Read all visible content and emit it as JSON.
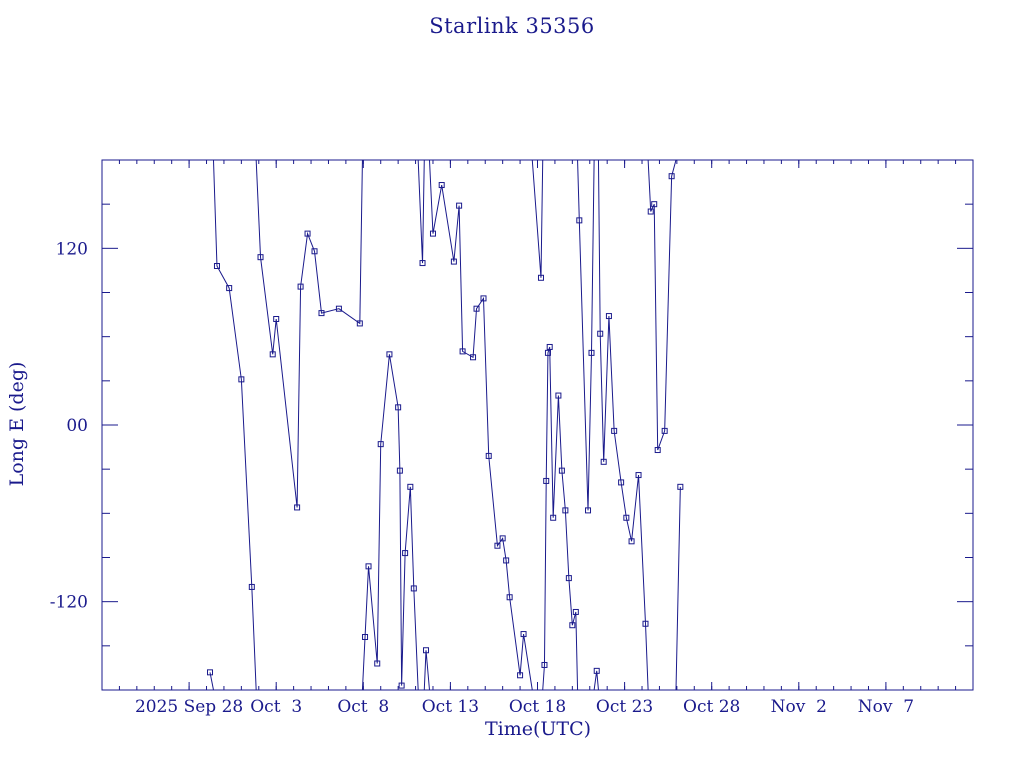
{
  "chart_data": {
    "type": "line",
    "title": "Starlink 35356",
    "xlabel": "Time(UTC)",
    "ylabel": "Long E (deg)",
    "color": "#1a1a8c",
    "x_unit": "day of month (Sep 2025 continued into Oct/Nov)",
    "x_ticks": [
      {
        "date": "2025 Sep 28",
        "label": "2025 Sep 28"
      },
      {
        "date": "Oct 3",
        "label": "Oct  3"
      },
      {
        "date": "Oct 8",
        "label": "Oct  8"
      },
      {
        "date": "Oct 13",
        "label": "Oct 13"
      },
      {
        "date": "Oct 18",
        "label": "Oct 18"
      },
      {
        "date": "Oct 23",
        "label": "Oct 23"
      },
      {
        "date": "Oct 28",
        "label": "Oct 28"
      },
      {
        "date": "Nov 2",
        "label": "Nov  2"
      },
      {
        "date": "Nov 7",
        "label": "Nov  7"
      }
    ],
    "y_ticks": [
      "-120",
      "00",
      "120"
    ],
    "ylim": [
      -180,
      180
    ],
    "xlim_dates": [
      "2025 Sep 23",
      "2025 Nov 12"
    ],
    "grid": false,
    "series": [
      {
        "points": [
          [
            "Sep 29.2",
            -168
          ],
          [
            "Sep 29.6",
            108
          ],
          [
            "Sep 30.3",
            93
          ],
          [
            "Oct 1.0",
            31
          ],
          [
            "Oct 1.6",
            -110
          ],
          [
            "Oct 2.1",
            114
          ],
          [
            "Oct 2.8",
            48
          ],
          [
            "Oct 3.0",
            72
          ],
          [
            "Oct 4.2",
            -56
          ],
          [
            "Oct 4.4",
            94
          ],
          [
            "Oct 4.8",
            130
          ],
          [
            "Oct 5.2",
            118
          ],
          [
            "Oct 5.6",
            76
          ],
          [
            "Oct 6.6",
            79
          ],
          [
            "Oct 7.8",
            69
          ],
          [
            "Oct 8.1",
            -144
          ],
          [
            "Oct 8.3",
            -96
          ],
          [
            "Oct 8.8",
            -162
          ],
          [
            "Oct 9.0",
            -13
          ],
          [
            "Oct 9.5",
            48
          ],
          [
            "Oct 10.0",
            12
          ],
          [
            "Oct 10.1",
            -31
          ],
          [
            "Oct 10.2",
            -177
          ],
          [
            "Oct 10.4",
            -87
          ],
          [
            "Oct 10.7",
            -42
          ],
          [
            "Oct 10.9",
            -111
          ],
          [
            "Oct 11.4",
            110
          ],
          [
            "Oct 11.6",
            -153
          ],
          [
            "Oct 12.0",
            130
          ],
          [
            "Oct 12.5",
            163
          ],
          [
            "Oct 13.2",
            111
          ],
          [
            "Oct 13.5",
            149
          ],
          [
            "Oct 13.7",
            50
          ],
          [
            "Oct 14.3",
            46
          ],
          [
            "Oct 14.5",
            79
          ],
          [
            "Oct 14.9",
            86
          ],
          [
            "Oct 15.2",
            -21
          ],
          [
            "Oct 15.7",
            -82
          ],
          [
            "Oct 16.0",
            -77
          ],
          [
            "Oct 16.2",
            -92
          ],
          [
            "Oct 16.4",
            -117
          ],
          [
            "Oct 17.0",
            -170
          ],
          [
            "Oct 17.2",
            -142
          ],
          [
            "Oct 18.2",
            100
          ],
          [
            "Oct 18.4",
            -163
          ],
          [
            "Oct 18.5",
            -38
          ],
          [
            "Oct 18.6",
            49
          ],
          [
            "Oct 18.7",
            53
          ],
          [
            "Oct 18.9",
            -63
          ],
          [
            "Oct 19.2",
            20
          ],
          [
            "Oct 19.4",
            -31
          ],
          [
            "Oct 19.6",
            -58
          ],
          [
            "Oct 19.8",
            -104
          ],
          [
            "Oct 20.0",
            -136
          ],
          [
            "Oct 20.2",
            -127
          ],
          [
            "Oct 20.4",
            139
          ],
          [
            "Oct 20.9",
            -58
          ],
          [
            "Oct 21.1",
            49
          ],
          [
            "Oct 21.4",
            -167
          ],
          [
            "Oct 21.6",
            62
          ],
          [
            "Oct 21.8",
            -25
          ],
          [
            "Oct 22.1",
            74
          ],
          [
            "Oct 22.4",
            -4
          ],
          [
            "Oct 22.8",
            -39
          ],
          [
            "Oct 23.1",
            -63
          ],
          [
            "Oct 23.4",
            -79
          ],
          [
            "Oct 23.8",
            -34
          ],
          [
            "Oct 24.2",
            -135
          ],
          [
            "Oct 24.5",
            145
          ],
          [
            "Oct 24.7",
            150
          ],
          [
            "Oct 24.9",
            -17
          ],
          [
            "Oct 25.3",
            -4
          ],
          [
            "Oct 25.7",
            169
          ],
          [
            "Oct 26.2",
            -42
          ]
        ]
      }
    ]
  }
}
